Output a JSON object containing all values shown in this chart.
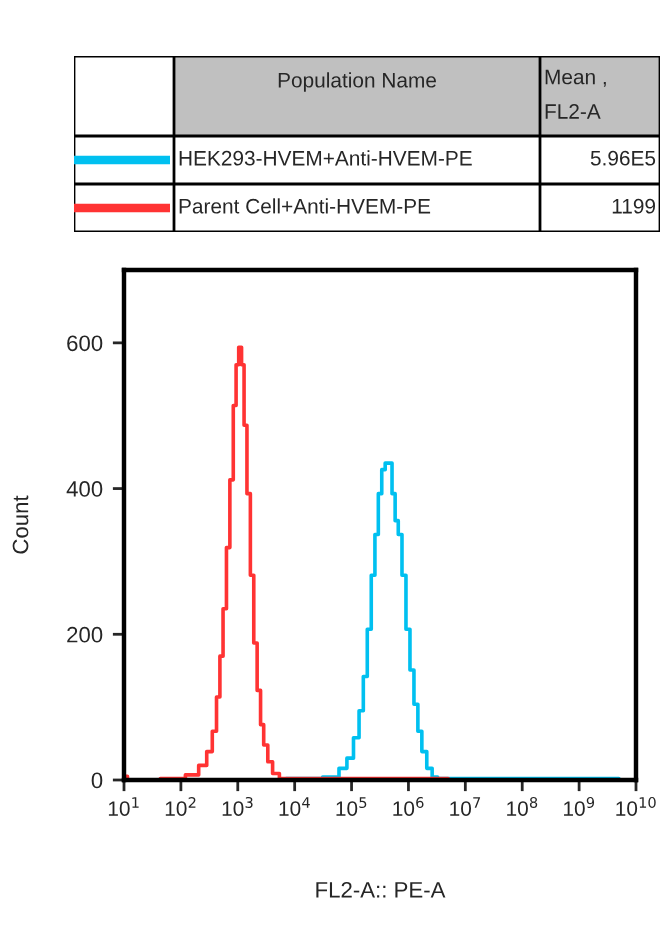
{
  "chart_data": {
    "type": "step",
    "xlabel": "FL2-A:: PE-A",
    "ylabel": "Count",
    "legend_title": "Population Name",
    "annotations": [
      "Mean , FL2-A",
      "5.96E5",
      "1199"
    ],
    "legend": "top",
    "log": "x",
    "xlim": [
      10,
      10000000000
    ],
    "xticks": [
      {
        "value": 10,
        "label": "10$^{1}$"
      },
      {
        "value": 100,
        "label": "10$^{2}$"
      },
      {
        "value": 1000,
        "label": "10$^{3}$"
      },
      {
        "value": 10000,
        "label": "10$^{4}$"
      },
      {
        "value": 100000,
        "label": "10$^{5}$"
      },
      {
        "value": 1000000,
        "label": "10$^{6}$"
      },
      {
        "value": 10000000,
        "label": "10$^{7}$"
      },
      {
        "value": 100000000,
        "label": "10$^{8}$"
      },
      {
        "value": 1000000000,
        "label": "10$^{9}$"
      },
      {
        "value": 10000000000,
        "label": "10$^{10}$"
      }
    ],
    "ylim": [
      0,
      700
    ],
    "yticks": [
      0,
      200,
      400,
      600
    ],
    "series": [
      {
        "name": "HEK293-HVEM+Anti-HVEM-PE",
        "color": "#00c0f0",
        "x": [
          10,
          14100,
          47900,
          72400,
          93300,
          123000,
          148000,
          174000,
          204000,
          240000,
          275000,
          316000,
          363000,
          417000,
          479000,
          550000,
          617000,
          708000,
          832000,
          977000,
          1150000,
          1350000,
          1580000,
          1860000,
          2340000,
          2880000,
          3630000,
          10000000000
        ],
        "values": [
          0,
          2,
          4,
          16,
          30,
          58,
          95,
          142,
          207,
          281,
          337,
          393,
          426,
          435,
          435,
          393,
          356,
          337,
          281,
          207,
          151,
          104,
          67,
          39,
          16,
          4,
          2,
          0
        ]
      },
      {
        "name": "Parent Cell+Anti-HVEM-PE",
        "color": "#ff3333",
        "x": [
          10,
          13,
          74,
          166,
          245,
          324,
          389,
          457,
          513,
          589,
          676,
          776,
          891,
          977,
          1100,
          1230,
          1350,
          1550,
          1780,
          2040,
          2340,
          2690,
          3020,
          3720,
          4470,
          6310,
          10000000
        ],
        "values": [
          5,
          0,
          2,
          7,
          20,
          39,
          67,
          114,
          170,
          235,
          319,
          412,
          514,
          570,
          594,
          570,
          487,
          393,
          281,
          188,
          123,
          76,
          48,
          25,
          9,
          2,
          0
        ]
      }
    ]
  }
}
